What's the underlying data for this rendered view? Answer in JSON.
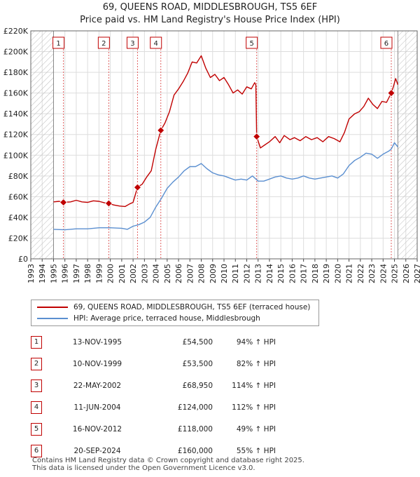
{
  "header": {
    "title_line1": "69, QUEENS ROAD, MIDDLESBROUGH, TS5 6EF",
    "title_line2": "Price paid vs. HM Land Registry's House Price Index (HPI)"
  },
  "colors": {
    "price_line": "#c00000",
    "hpi_line": "#5b8fd0",
    "grid": "#dddddd",
    "hatch": "#bbbbbb",
    "marker_line": "#e06060"
  },
  "chart_data": {
    "type": "line",
    "title": "69, QUEENS ROAD, MIDDLESBROUGH, TS5 6EF — Price paid vs. HM Land Registry's House Price Index (HPI)",
    "xlim": [
      1993,
      2027
    ],
    "ylim": [
      0,
      220000
    ],
    "x_ticks": [
      1993,
      1994,
      1995,
      1996,
      1997,
      1998,
      1999,
      2000,
      2001,
      2002,
      2003,
      2004,
      2005,
      2006,
      2007,
      2008,
      2009,
      2010,
      2011,
      2012,
      2013,
      2014,
      2015,
      2016,
      2017,
      2018,
      2019,
      2020,
      2021,
      2022,
      2023,
      2024,
      2025,
      2026,
      2027
    ],
    "y_ticks": [
      {
        "value": 0,
        "label": "£0"
      },
      {
        "value": 20000,
        "label": "£20K"
      },
      {
        "value": 40000,
        "label": "£40K"
      },
      {
        "value": 60000,
        "label": "£60K"
      },
      {
        "value": 80000,
        "label": "£80K"
      },
      {
        "value": 100000,
        "label": "£100K"
      },
      {
        "value": 120000,
        "label": "£120K"
      },
      {
        "value": 140000,
        "label": "£140K"
      },
      {
        "value": 160000,
        "label": "£160K"
      },
      {
        "value": 180000,
        "label": "£180K"
      },
      {
        "value": 200000,
        "label": "£200K"
      },
      {
        "value": 220000,
        "label": "£220K"
      }
    ],
    "data_start": 1995.0,
    "data_end": 2025.3,
    "series": [
      {
        "name": "69, QUEENS ROAD, MIDDLESBROUGH, TS5 6EF (terraced house)",
        "points": [
          [
            1995.0,
            55000
          ],
          [
            1995.5,
            55500
          ],
          [
            1995.87,
            54500
          ],
          [
            1996.5,
            55000
          ],
          [
            1997.0,
            56500
          ],
          [
            1997.5,
            55000
          ],
          [
            1998.0,
            54500
          ],
          [
            1998.5,
            56000
          ],
          [
            1999.0,
            55500
          ],
          [
            1999.5,
            54000
          ],
          [
            1999.86,
            53500
          ],
          [
            2000.3,
            52000
          ],
          [
            2000.8,
            51000
          ],
          [
            2001.3,
            50500
          ],
          [
            2001.7,
            53000
          ],
          [
            2002.0,
            54500
          ],
          [
            2002.39,
            68950
          ],
          [
            2002.8,
            72000
          ],
          [
            2003.2,
            79000
          ],
          [
            2003.6,
            85000
          ],
          [
            2004.0,
            106000
          ],
          [
            2004.44,
            124000
          ],
          [
            2004.8,
            131000
          ],
          [
            2005.2,
            142000
          ],
          [
            2005.6,
            158000
          ],
          [
            2006.0,
            164000
          ],
          [
            2006.4,
            171000
          ],
          [
            2006.8,
            179000
          ],
          [
            2007.2,
            190000
          ],
          [
            2007.6,
            189000
          ],
          [
            2008.0,
            196000
          ],
          [
            2008.4,
            184000
          ],
          [
            2008.8,
            175000
          ],
          [
            2009.2,
            178000
          ],
          [
            2009.6,
            172000
          ],
          [
            2010.0,
            175000
          ],
          [
            2010.4,
            168000
          ],
          [
            2010.8,
            160000
          ],
          [
            2011.2,
            163000
          ],
          [
            2011.6,
            159000
          ],
          [
            2012.0,
            166000
          ],
          [
            2012.4,
            164000
          ],
          [
            2012.7,
            170000
          ],
          [
            2012.8,
            168000
          ],
          [
            2012.875,
            118000
          ],
          [
            2013.2,
            107000
          ],
          [
            2013.6,
            110000
          ],
          [
            2014.0,
            113000
          ],
          [
            2014.5,
            118000
          ],
          [
            2014.9,
            112000
          ],
          [
            2015.3,
            119000
          ],
          [
            2015.8,
            115000
          ],
          [
            2016.2,
            117000
          ],
          [
            2016.7,
            114000
          ],
          [
            2017.2,
            118000
          ],
          [
            2017.7,
            115000
          ],
          [
            2018.2,
            117000
          ],
          [
            2018.7,
            113000
          ],
          [
            2019.2,
            118000
          ],
          [
            2019.7,
            116000
          ],
          [
            2020.2,
            113000
          ],
          [
            2020.6,
            122000
          ],
          [
            2021.0,
            135000
          ],
          [
            2021.5,
            140000
          ],
          [
            2021.9,
            142000
          ],
          [
            2022.3,
            147000
          ],
          [
            2022.7,
            155000
          ],
          [
            2023.1,
            149000
          ],
          [
            2023.5,
            145000
          ],
          [
            2023.9,
            152000
          ],
          [
            2024.3,
            151000
          ],
          [
            2024.72,
            160000
          ],
          [
            2024.9,
            166000
          ],
          [
            2025.1,
            174000
          ],
          [
            2025.3,
            168000
          ]
        ]
      },
      {
        "name": "HPI: Average price, terraced house, Middlesbrough",
        "points": [
          [
            1995.0,
            28500
          ],
          [
            1996.0,
            28000
          ],
          [
            1997.0,
            29000
          ],
          [
            1998.0,
            29000
          ],
          [
            1999.0,
            30000
          ],
          [
            2000.0,
            30000
          ],
          [
            2001.0,
            29500
          ],
          [
            2001.5,
            28500
          ],
          [
            2002.0,
            31500
          ],
          [
            2002.5,
            33000
          ],
          [
            2003.0,
            35500
          ],
          [
            2003.5,
            40000
          ],
          [
            2004.0,
            50000
          ],
          [
            2004.5,
            58500
          ],
          [
            2005.0,
            68000
          ],
          [
            2005.5,
            74000
          ],
          [
            2006.0,
            79000
          ],
          [
            2006.5,
            85000
          ],
          [
            2007.0,
            89000
          ],
          [
            2007.5,
            89000
          ],
          [
            2008.0,
            92000
          ],
          [
            2008.5,
            87000
          ],
          [
            2009.0,
            83000
          ],
          [
            2009.5,
            81000
          ],
          [
            2010.0,
            80000
          ],
          [
            2010.5,
            78000
          ],
          [
            2011.0,
            76000
          ],
          [
            2011.5,
            77000
          ],
          [
            2012.0,
            76000
          ],
          [
            2012.5,
            80000
          ],
          [
            2013.0,
            75000
          ],
          [
            2013.5,
            75000
          ],
          [
            2014.0,
            77000
          ],
          [
            2014.5,
            79000
          ],
          [
            2015.0,
            80000
          ],
          [
            2015.5,
            78000
          ],
          [
            2016.0,
            77000
          ],
          [
            2016.5,
            78000
          ],
          [
            2017.0,
            80000
          ],
          [
            2017.5,
            78000
          ],
          [
            2018.0,
            77000
          ],
          [
            2018.5,
            78000
          ],
          [
            2019.0,
            79000
          ],
          [
            2019.5,
            80000
          ],
          [
            2020.0,
            78000
          ],
          [
            2020.5,
            82000
          ],
          [
            2021.0,
            90000
          ],
          [
            2021.5,
            95000
          ],
          [
            2022.0,
            98000
          ],
          [
            2022.5,
            102000
          ],
          [
            2023.0,
            101000
          ],
          [
            2023.5,
            97000
          ],
          [
            2024.0,
            101000
          ],
          [
            2024.5,
            104000
          ],
          [
            2024.72,
            106000
          ],
          [
            2025.0,
            112000
          ],
          [
            2025.3,
            108000
          ]
        ]
      }
    ],
    "sales": [
      {
        "num": "1",
        "x": 1995.87,
        "price": 54500
      },
      {
        "num": "2",
        "x": 1999.86,
        "price": 53500
      },
      {
        "num": "3",
        "x": 2002.39,
        "price": 68950
      },
      {
        "num": "4",
        "x": 2004.44,
        "price": 124000
      },
      {
        "num": "5",
        "x": 2012.875,
        "price": 118000
      },
      {
        "num": "6",
        "x": 2024.72,
        "price": 160000
      }
    ]
  },
  "legend": {
    "price_label": "69, QUEENS ROAD, MIDDLESBROUGH, TS5 6EF (terraced house)",
    "hpi_label": "HPI: Average price, terraced house, Middlesbrough"
  },
  "sales_table": [
    {
      "num": "1",
      "date": "13-NOV-1995",
      "price": "£54,500",
      "hpi": "94% ↑ HPI"
    },
    {
      "num": "2",
      "date": "10-NOV-1999",
      "price": "£53,500",
      "hpi": "82% ↑ HPI"
    },
    {
      "num": "3",
      "date": "22-MAY-2002",
      "price": "£68,950",
      "hpi": "114% ↑ HPI"
    },
    {
      "num": "4",
      "date": "11-JUN-2004",
      "price": "£124,000",
      "hpi": "112% ↑ HPI"
    },
    {
      "num": "5",
      "date": "16-NOV-2012",
      "price": "£118,000",
      "hpi": "49% ↑ HPI"
    },
    {
      "num": "6",
      "date": "20-SEP-2024",
      "price": "£160,000",
      "hpi": "55% ↑ HPI"
    }
  ],
  "footer": {
    "line1": "Contains HM Land Registry data © Crown copyright and database right 2025.",
    "line2": "This data is licensed under the Open Government Licence v3.0."
  }
}
